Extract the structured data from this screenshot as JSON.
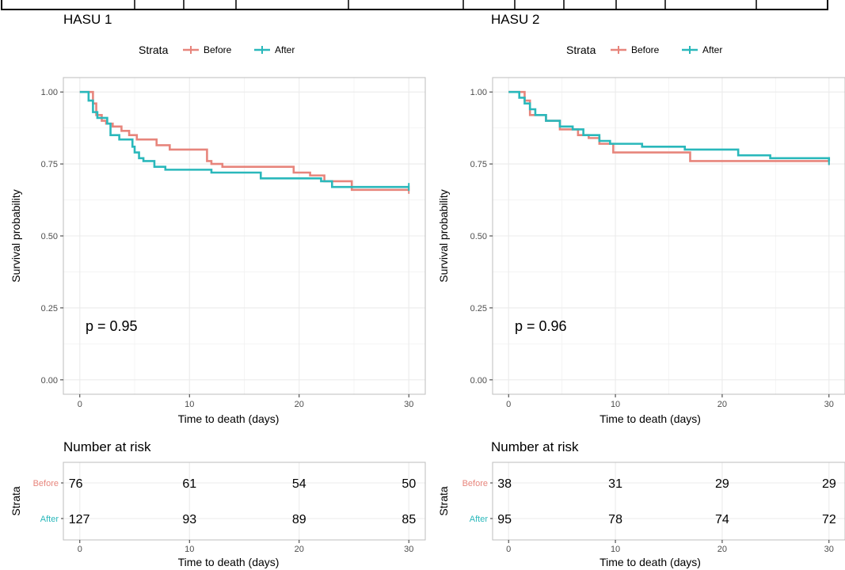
{
  "legend": {
    "title": "Strata",
    "labels": [
      "Before",
      "After"
    ]
  },
  "colors": {
    "before": "#E7857C",
    "after": "#2AB8BB",
    "panel_border": "#BDBDBD",
    "grid": "#EBEBEB",
    "tick_text": "#4D4D4D"
  },
  "chart_data": [
    {
      "type": "line",
      "title": "HASU 1",
      "xlabel": "Time to death (days)",
      "ylabel": "Survival probability",
      "xlim": [
        -1.5,
        31.5
      ],
      "ylim": [
        -0.05,
        1.05
      ],
      "xticks": [
        0,
        10,
        20,
        30
      ],
      "xtick_labels": [
        "0",
        "10",
        "20",
        "30"
      ],
      "yticks": [
        0,
        0.25,
        0.5,
        0.75,
        1
      ],
      "ytick_labels": [
        "0.00",
        "0.25",
        "0.50",
        "0.75",
        "1.00"
      ],
      "annotation": "p = 0.95",
      "grid": true,
      "legend_position": "top",
      "series": [
        {
          "name": "Before",
          "x": [
            0,
            1.2,
            1.5,
            2,
            2.4,
            3,
            3.8,
            4.5,
            5.2,
            7,
            8.2,
            11.6,
            12,
            13,
            19.5,
            21,
            22.3,
            24.8,
            30
          ],
          "y": [
            1.0,
            0.96,
            0.92,
            0.9,
            0.89,
            0.88,
            0.865,
            0.85,
            0.835,
            0.815,
            0.8,
            0.76,
            0.75,
            0.74,
            0.72,
            0.71,
            0.69,
            0.66,
            0.66
          ]
        },
        {
          "name": "After",
          "x": [
            0,
            0.8,
            1.2,
            1.6,
            2.5,
            2.8,
            3.6,
            4.8,
            5.0,
            5.4,
            5.8,
            6.8,
            7.8,
            12,
            15,
            16.5,
            22.0,
            23,
            30
          ],
          "y": [
            1.0,
            0.97,
            0.93,
            0.91,
            0.89,
            0.85,
            0.835,
            0.81,
            0.79,
            0.77,
            0.76,
            0.74,
            0.73,
            0.72,
            0.72,
            0.7,
            0.69,
            0.67,
            0.67
          ]
        }
      ],
      "risk_table": {
        "title": "Number at risk",
        "ylabel": "Strata",
        "rows": [
          {
            "label": "Before",
            "values": [
              "76",
              "61",
              "54",
              "50"
            ]
          },
          {
            "label": "After",
            "values": [
              "127",
              "93",
              "89",
              "85"
            ]
          }
        ],
        "xlabel": "Time to death (days)"
      }
    },
    {
      "type": "line",
      "title": "HASU 2",
      "xlabel": "Time to death (days)",
      "ylabel": "Survival probability",
      "xlim": [
        -1.5,
        31.5
      ],
      "ylim": [
        -0.05,
        1.05
      ],
      "xticks": [
        0,
        10,
        20,
        30
      ],
      "xtick_labels": [
        "0",
        "10",
        "20",
        "30"
      ],
      "yticks": [
        0,
        0.25,
        0.5,
        0.75,
        1
      ],
      "ytick_labels": [
        "0.00",
        "0.25",
        "0.50",
        "0.75",
        "1.00"
      ],
      "annotation": "p = 0.96",
      "grid": true,
      "legend_position": "top",
      "series": [
        {
          "name": "Before",
          "x": [
            0,
            1.5,
            2,
            3.5,
            4.8,
            6.5,
            7.5,
            8.5,
            9.8,
            17,
            30
          ],
          "y": [
            1.0,
            0.97,
            0.92,
            0.9,
            0.87,
            0.85,
            0.84,
            0.82,
            0.79,
            0.76,
            0.76
          ]
        },
        {
          "name": "After",
          "x": [
            0,
            1.0,
            1.5,
            2.0,
            2.5,
            3.5,
            4.8,
            6.0,
            7.0,
            8.5,
            9.5,
            12.5,
            16.5,
            21.5,
            24.5,
            30
          ],
          "y": [
            1.0,
            0.98,
            0.96,
            0.94,
            0.92,
            0.9,
            0.88,
            0.87,
            0.85,
            0.83,
            0.82,
            0.81,
            0.8,
            0.78,
            0.77,
            0.76
          ]
        }
      ],
      "risk_table": {
        "title": "Number at risk",
        "ylabel": "Strata",
        "rows": [
          {
            "label": "Before",
            "values": [
              "38",
              "31",
              "29",
              "29"
            ]
          },
          {
            "label": "After",
            "values": [
              "95",
              "78",
              "74",
              "72"
            ]
          }
        ],
        "xlabel": "Time to death (days)"
      }
    }
  ]
}
